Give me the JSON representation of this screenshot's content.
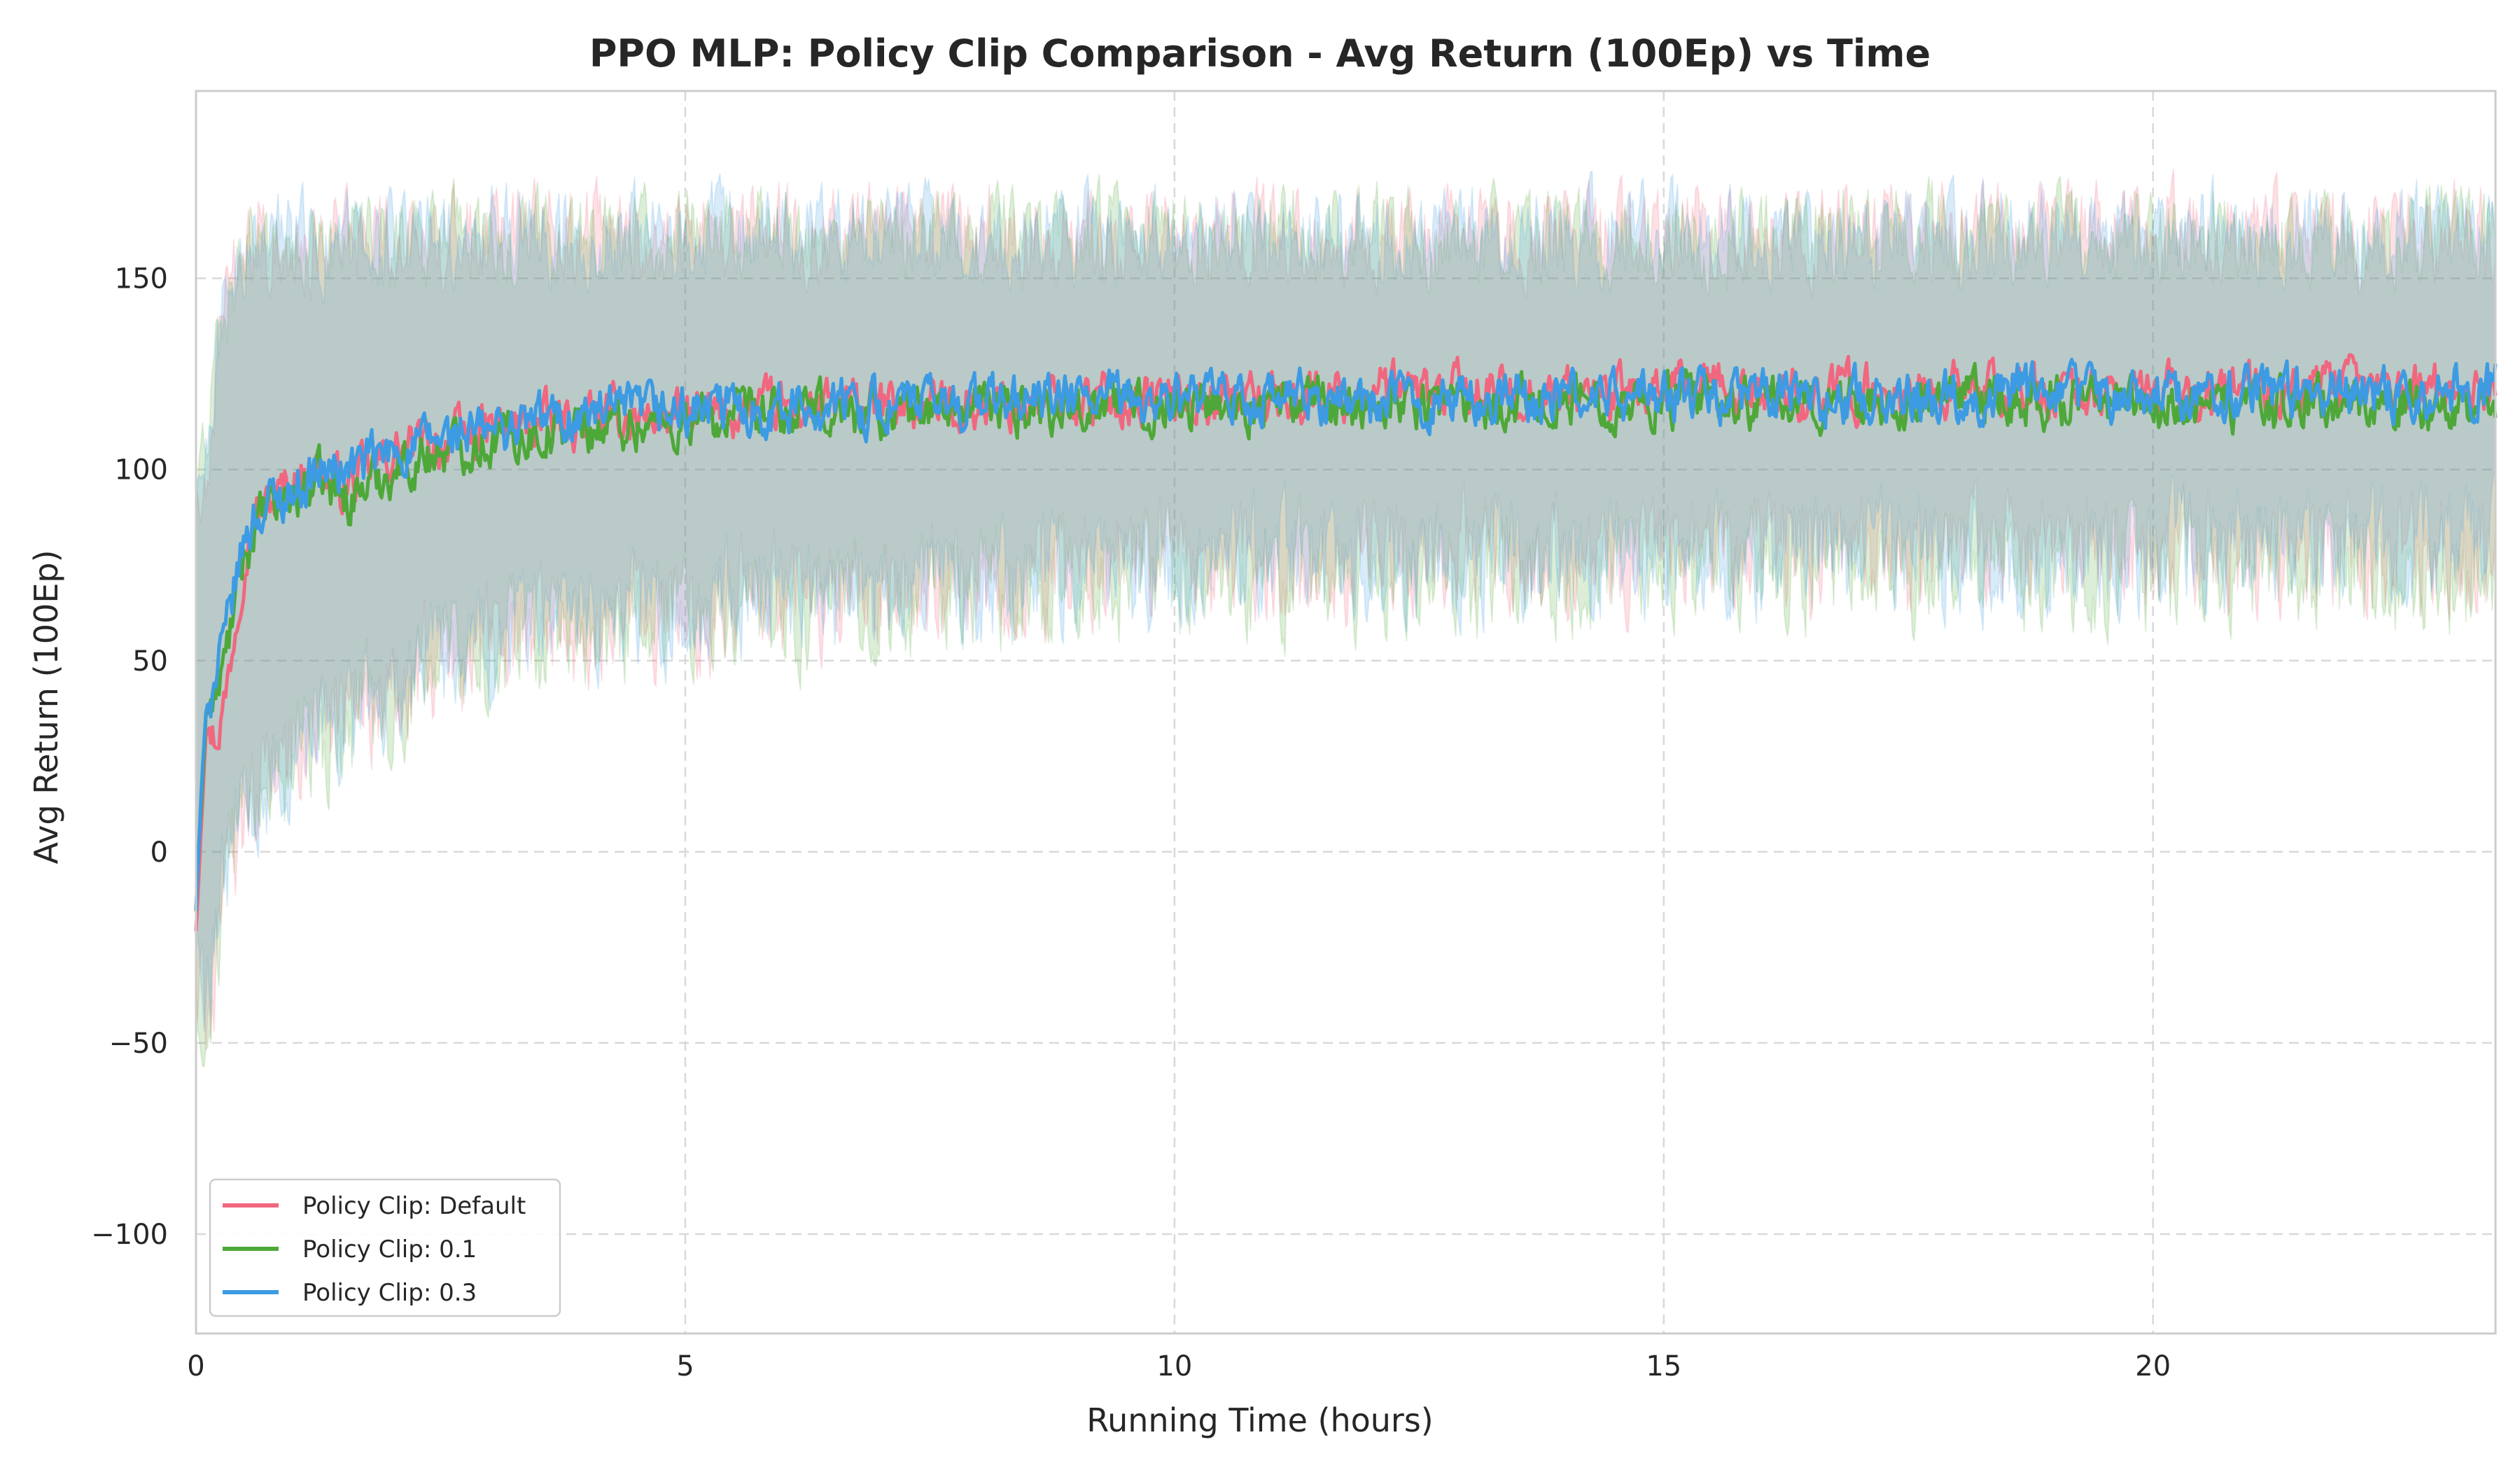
{
  "chart_data": {
    "type": "line",
    "title": "PPO MLP: Policy Clip Comparison - Avg Return (100Ep) vs Time",
    "xlabel": "Running Time (hours)",
    "ylabel": "Avg Return (100Ep)",
    "xlim": [
      0,
      23.5
    ],
    "ylim": [
      -126,
      199
    ],
    "xticks": [
      0,
      5,
      10,
      15,
      20
    ],
    "xtick_labels": [
      "0",
      "5",
      "10",
      "15",
      "20"
    ],
    "yticks": [
      -100,
      -50,
      0,
      50,
      100,
      150
    ],
    "ytick_labels": [
      "−100",
      "−50",
      "0",
      "50",
      "100",
      "150"
    ],
    "grid": true,
    "legend_position": "lower-left",
    "band_description": "shaded min-max range per series",
    "series": [
      {
        "name": "Policy Clip: Default",
        "color": "#f1677f",
        "x": [
          0,
          0.1,
          0.2,
          0.3,
          0.4,
          0.5,
          0.6,
          0.8,
          1.0,
          1.25,
          1.5,
          2.0,
          2.5,
          3.0,
          3.5,
          4.0,
          4.5,
          5,
          5.5,
          6,
          6.5,
          7,
          7.5,
          8,
          9,
          10,
          11,
          12,
          13,
          14,
          15,
          16,
          17,
          18,
          19,
          20,
          21,
          22,
          23,
          23.5
        ],
        "y": [
          -20,
          33,
          30,
          40,
          60,
          80,
          88,
          92,
          97,
          100,
          95,
          104,
          107,
          110,
          112,
          113,
          114,
          114,
          115,
          116,
          116,
          116,
          117,
          117,
          118,
          119,
          119,
          120,
          120,
          120,
          120,
          120,
          120,
          121,
          120,
          120,
          120,
          121,
          121,
          121
        ],
        "band_low": [
          -45,
          -40,
          -30,
          -10,
          0,
          10,
          15,
          20,
          25,
          30,
          35,
          45,
          50,
          55,
          58,
          60,
          62,
          62,
          64,
          66,
          68,
          68,
          70,
          70,
          72,
          75,
          76,
          78,
          78,
          78,
          78,
          78,
          78,
          78,
          78,
          78,
          78,
          78,
          78,
          78
        ],
        "band_high": [
          90,
          100,
          120,
          140,
          150,
          155,
          158,
          160,
          160,
          160,
          160,
          160,
          160,
          162,
          162,
          162,
          162,
          162,
          162,
          162,
          162,
          162,
          162,
          162,
          162,
          162,
          162,
          162,
          162,
          162,
          162,
          162,
          162,
          162,
          162,
          162,
          162,
          162,
          162,
          162
        ]
      },
      {
        "name": "Policy Clip: 0.1",
        "color": "#4ea839",
        "x": [
          0,
          0.1,
          0.2,
          0.3,
          0.4,
          0.5,
          0.6,
          0.8,
          1.0,
          1.25,
          1.5,
          2.0,
          2.5,
          3.0,
          3.5,
          4.0,
          4.5,
          5,
          5.5,
          6,
          6.5,
          7,
          7.5,
          8,
          9,
          10,
          11,
          12,
          13,
          14,
          15,
          16,
          17,
          18,
          19,
          20,
          21,
          22,
          23,
          23.5
        ],
        "y": [
          -15,
          36,
          40,
          50,
          65,
          78,
          85,
          90,
          93,
          97,
          92,
          100,
          105,
          108,
          110,
          111,
          112,
          112,
          113,
          114,
          115,
          115,
          116,
          116,
          117,
          117,
          117,
          118,
          118,
          118,
          118,
          117,
          118,
          118,
          118,
          117,
          117,
          117,
          117,
          118
        ],
        "band_low": [
          -40,
          -35,
          -25,
          -8,
          2,
          12,
          16,
          20,
          24,
          28,
          34,
          42,
          48,
          52,
          56,
          58,
          60,
          60,
          62,
          64,
          66,
          66,
          68,
          68,
          70,
          72,
          72,
          72,
          72,
          72,
          72,
          72,
          72,
          72,
          72,
          72,
          72,
          72,
          72,
          72
        ],
        "band_high": [
          95,
          105,
          125,
          142,
          150,
          155,
          158,
          160,
          160,
          160,
          160,
          160,
          160,
          162,
          162,
          162,
          162,
          162,
          162,
          162,
          162,
          162,
          162,
          162,
          162,
          162,
          162,
          162,
          162,
          162,
          162,
          162,
          162,
          162,
          162,
          162,
          162,
          162,
          162,
          162
        ]
      },
      {
        "name": "Policy Clip: 0.3",
        "color": "#3d9be3",
        "x": [
          0,
          0.1,
          0.2,
          0.3,
          0.4,
          0.5,
          0.6,
          0.8,
          1.0,
          1.25,
          1.5,
          2.0,
          2.5,
          3.0,
          3.5,
          4.0,
          4.5,
          5,
          5.5,
          6,
          6.5,
          7,
          7.5,
          8,
          9,
          10,
          11,
          12,
          13,
          14,
          15,
          16,
          17,
          18,
          19,
          20,
          21,
          22,
          23,
          23.5
        ],
        "y": [
          -15,
          38,
          45,
          55,
          70,
          82,
          88,
          92,
          95,
          99,
          100,
          104,
          108,
          110,
          113,
          114,
          115,
          115,
          116,
          116,
          117,
          117,
          117,
          118,
          118,
          118,
          118,
          118,
          118,
          119,
          119,
          119,
          119,
          120,
          120,
          120,
          120,
          121,
          121,
          122
        ],
        "band_low": [
          -35,
          -30,
          -20,
          -5,
          4,
          14,
          18,
          22,
          26,
          30,
          36,
          44,
          50,
          54,
          58,
          60,
          62,
          62,
          64,
          66,
          68,
          68,
          70,
          70,
          72,
          75,
          76,
          76,
          76,
          78,
          78,
          78,
          78,
          78,
          78,
          78,
          78,
          78,
          78,
          80
        ],
        "band_high": [
          100,
          110,
          128,
          145,
          152,
          156,
          158,
          160,
          160,
          160,
          160,
          160,
          162,
          162,
          162,
          162,
          162,
          162,
          162,
          162,
          162,
          162,
          162,
          162,
          162,
          162,
          162,
          162,
          162,
          162,
          162,
          162,
          162,
          162,
          162,
          162,
          162,
          162,
          162,
          162
        ]
      }
    ]
  }
}
